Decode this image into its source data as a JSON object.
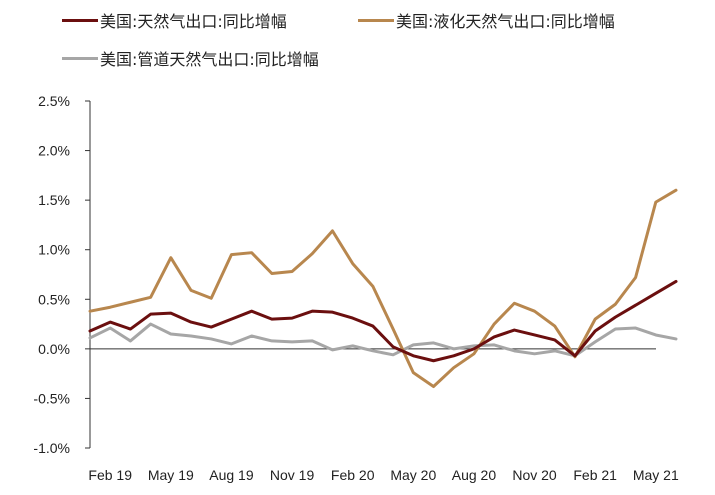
{
  "chart_data": {
    "type": "line",
    "title": "",
    "xlabel": "",
    "ylabel": "",
    "ylim": [
      -1.0,
      2.5
    ],
    "y_ticks": [
      2.5,
      2.0,
      1.5,
      1.0,
      0.5,
      0.0,
      -0.5,
      -1.0
    ],
    "y_tick_labels": [
      "2.5%",
      "2.0%",
      "1.5%",
      "1.0%",
      "0.5%",
      "0.0%",
      "-0.5%",
      "-1.0%"
    ],
    "x_tick_labels": [
      "Feb 19",
      "May 19",
      "Aug 19",
      "Nov 19",
      "Feb 20",
      "May 20",
      "Aug 20",
      "Nov 20",
      "Feb 21",
      "May 21"
    ],
    "x": [
      "2019-01",
      "2019-02",
      "2019-03",
      "2019-04",
      "2019-05",
      "2019-06",
      "2019-07",
      "2019-08",
      "2019-09",
      "2019-10",
      "2019-11",
      "2019-12",
      "2020-01",
      "2020-02",
      "2020-03",
      "2020-04",
      "2020-05",
      "2020-06",
      "2020-07",
      "2020-08",
      "2020-09",
      "2020-10",
      "2020-11",
      "2020-12",
      "2021-01",
      "2021-02",
      "2021-03",
      "2021-04",
      "2021-05",
      "2021-06"
    ],
    "legend_position": "top",
    "grid": false,
    "series": [
      {
        "name": "美国:天然气出口:同比增幅",
        "color": "#6b0f0f",
        "values": [
          0.18,
          0.27,
          0.2,
          0.35,
          0.36,
          0.27,
          0.22,
          0.3,
          0.38,
          0.3,
          0.31,
          0.38,
          0.37,
          0.31,
          0.23,
          0.02,
          -0.07,
          -0.12,
          -0.07,
          0.0,
          0.12,
          0.19,
          0.14,
          0.09,
          -0.07,
          0.18,
          0.32,
          0.44,
          0.56,
          0.68
        ]
      },
      {
        "name": "美国:液化天然气出口:同比增幅",
        "color": "#b8874e",
        "values": [
          0.38,
          0.42,
          0.47,
          0.52,
          0.92,
          0.59,
          0.51,
          0.95,
          0.97,
          0.76,
          0.78,
          0.96,
          1.19,
          0.86,
          0.63,
          0.2,
          -0.24,
          -0.38,
          -0.19,
          -0.05,
          0.25,
          0.46,
          0.38,
          0.23,
          -0.08,
          0.3,
          0.45,
          0.72,
          1.48,
          1.6
        ]
      },
      {
        "name": "美国:管道天然气出口:同比增幅",
        "color": "#a6a6a6",
        "values": [
          0.11,
          0.21,
          0.08,
          0.25,
          0.15,
          0.13,
          0.1,
          0.05,
          0.13,
          0.08,
          0.07,
          0.08,
          -0.01,
          0.03,
          -0.02,
          -0.06,
          0.04,
          0.06,
          0.0,
          0.03,
          0.04,
          -0.02,
          -0.05,
          -0.02,
          -0.07,
          0.07,
          0.2,
          0.21,
          0.14,
          0.1
        ]
      }
    ]
  }
}
